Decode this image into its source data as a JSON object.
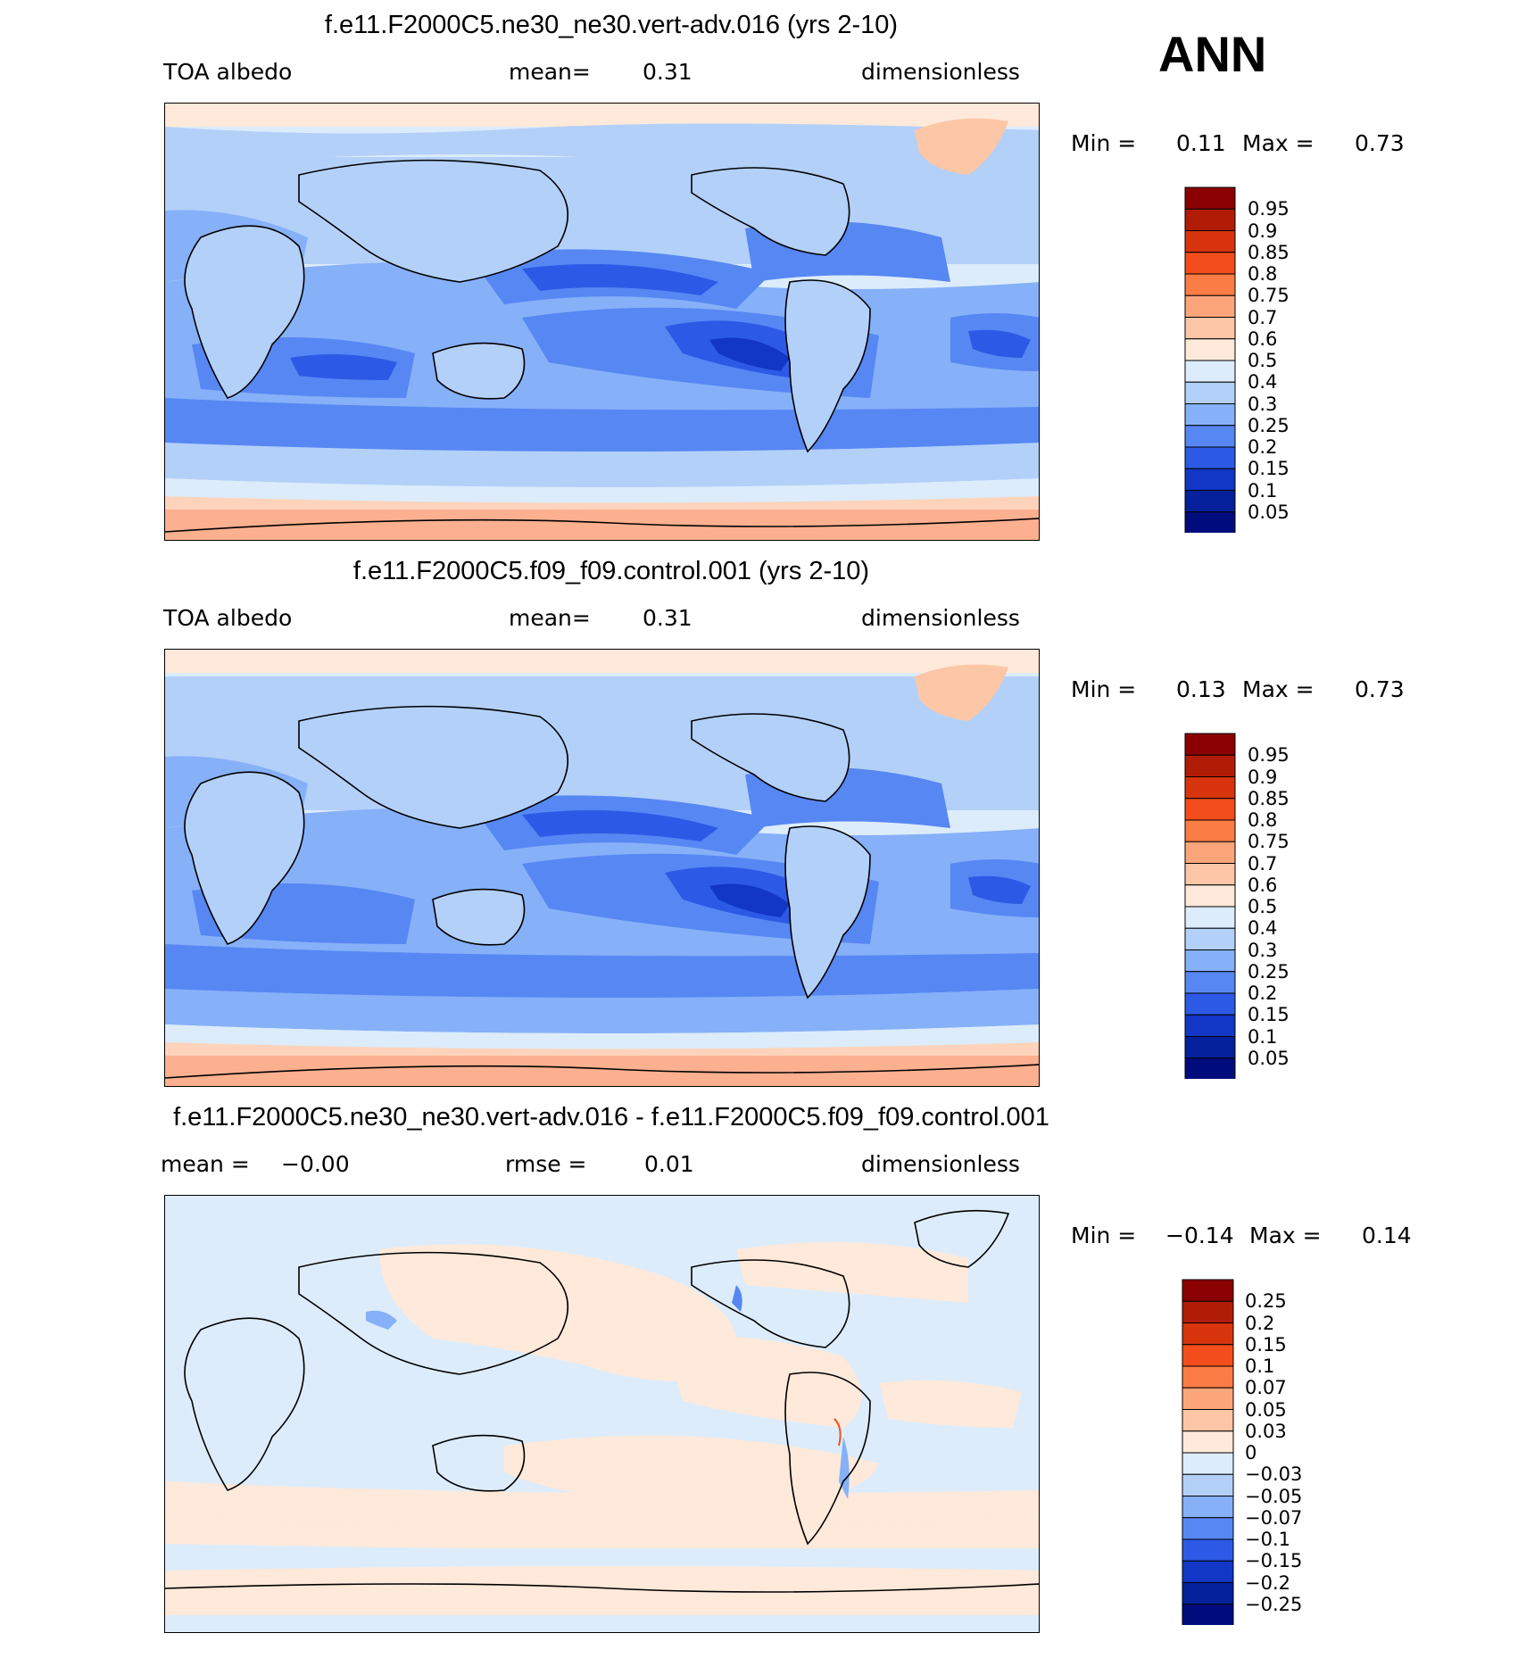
{
  "season": "ANN",
  "panels": [
    {
      "title": "f.e11.F2000C5.ne30_ne30.vert-adv.016 (yrs 2-10)",
      "left_label": "TOA albedo",
      "center_label": "mean=",
      "center_value": "0.31",
      "right_label": "dimensionless",
      "min_label": "Min =",
      "min_value": "0.11",
      "max_label": "Max =",
      "max_value": "0.73",
      "colorbar_levels": [
        "0.95",
        "0.9",
        "0.85",
        "0.8",
        "0.75",
        "0.7",
        "0.6",
        "0.5",
        "0.4",
        "0.3",
        "0.25",
        "0.2",
        "0.15",
        "0.1",
        "0.05"
      ]
    },
    {
      "title": "f.e11.F2000C5.f09_f09.control.001 (yrs 2-10)",
      "left_label": "TOA albedo",
      "center_label": "mean=",
      "center_value": "0.31",
      "right_label": "dimensionless",
      "min_label": "Min =",
      "min_value": "0.13",
      "max_label": "Max =",
      "max_value": "0.73",
      "colorbar_levels": [
        "0.95",
        "0.9",
        "0.85",
        "0.8",
        "0.75",
        "0.7",
        "0.6",
        "0.5",
        "0.4",
        "0.3",
        "0.25",
        "0.2",
        "0.15",
        "0.1",
        "0.05"
      ]
    },
    {
      "title": "f.e11.F2000C5.ne30_ne30.vert-adv.016 - f.e11.F2000C5.f09_f09.control.001",
      "left_label": "mean =",
      "left_value": "−0.00",
      "center_label": "rmse =",
      "center_value": "0.01",
      "right_label": "dimensionless",
      "min_label": "Min =",
      "min_value": "−0.14",
      "max_label": "Max =",
      "max_value": "0.14",
      "colorbar_levels": [
        "0.25",
        "0.2",
        "0.15",
        "0.1",
        "0.07",
        "0.05",
        "0.03",
        "0",
        "−0.03",
        "−0.05",
        "−0.07",
        "−0.1",
        "−0.15",
        "−0.2",
        "−0.25"
      ]
    }
  ],
  "colorbar_colors": [
    "#8b0000",
    "#b01c06",
    "#d8340e",
    "#f24d1b",
    "#fb7c45",
    "#fda57a",
    "#fdc6a6",
    "#fee9da",
    "#dcecfb",
    "#b3d0f9",
    "#86b0f8",
    "#5787f3",
    "#2c5ae6",
    "#1236c6",
    "#04209b",
    "#000c7c"
  ],
  "field_colors": {
    "ice": "#fcb090",
    "snow": "#fdd4bb",
    "highcloud": "#fee9da",
    "lightblue": "#dcecfb",
    "blue1": "#b3d0f9",
    "blue2": "#86b0f8",
    "blue3": "#5787f3",
    "blue4": "#2c5ae6",
    "blue5": "#1236c6",
    "diff_neg": "#dcecfb",
    "diff_pos": "#fee9da"
  }
}
